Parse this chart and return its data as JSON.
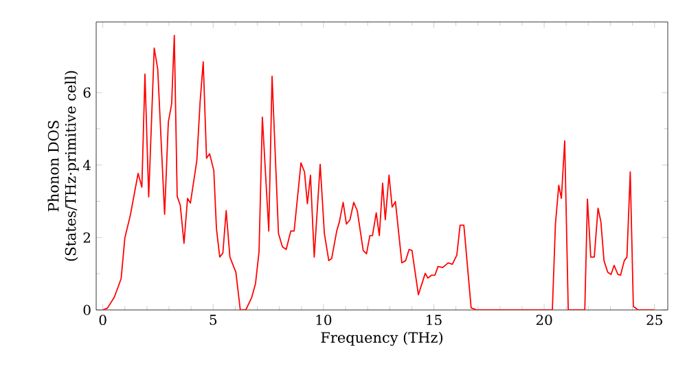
{
  "chart_data": {
    "type": "line",
    "xlabel": "Frequency (THz)",
    "ylabel": "Phonon DOS\n(States/THz·primitive cell)",
    "x": [
      0,
      0.21,
      0.52,
      0.83,
      1.0,
      1.25,
      1.6,
      1.77,
      1.91,
      2.08,
      2.33,
      2.49,
      2.8,
      2.97,
      3.12,
      3.24,
      3.37,
      3.51,
      3.68,
      3.84,
      3.97,
      4.26,
      4.41,
      4.55,
      4.7,
      4.84,
      5.03,
      5.15,
      5.3,
      5.44,
      5.59,
      5.76,
      6.03,
      6.23,
      6.48,
      6.75,
      6.92,
      7.08,
      7.23,
      7.52,
      7.67,
      7.96,
      8.14,
      8.31,
      8.52,
      8.67,
      8.98,
      9.14,
      9.27,
      9.41,
      9.58,
      9.85,
      10.04,
      10.24,
      10.37,
      10.6,
      10.72,
      10.89,
      11.04,
      11.2,
      11.37,
      11.53,
      11.8,
      11.95,
      12.1,
      12.22,
      12.39,
      12.53,
      12.68,
      12.8,
      12.97,
      13.11,
      13.26,
      13.55,
      13.72,
      13.88,
      14.01,
      14.3,
      14.61,
      14.73,
      14.9,
      15.05,
      15.19,
      15.4,
      15.65,
      15.84,
      16.04,
      16.19,
      16.36,
      16.69,
      16.94,
      20.37,
      20.51,
      20.66,
      20.78,
      20.93,
      21.09,
      21.84,
      21.96,
      22.11,
      22.27,
      22.44,
      22.57,
      22.71,
      22.88,
      23.03,
      23.17,
      23.34,
      23.46,
      23.63,
      23.75,
      23.9,
      24.04,
      24.25,
      25
    ],
    "series": [
      {
        "color": "#ff0000",
        "values": [
          0,
          0.05,
          0.35,
          0.86,
          1.99,
          2.62,
          3.77,
          3.39,
          6.51,
          3.12,
          7.23,
          6.64,
          2.64,
          5.19,
          5.69,
          7.58,
          3.14,
          2.89,
          1.84,
          3.08,
          2.95,
          4.12,
          5.75,
          6.85,
          4.19,
          4.31,
          3.85,
          2.24,
          1.46,
          1.57,
          2.74,
          1.46,
          1.04,
          0,
          0,
          0.35,
          0.73,
          1.61,
          5.32,
          2.18,
          6.45,
          2.11,
          1.74,
          1.67,
          2.18,
          2.18,
          4.06,
          3.81,
          2.93,
          3.72,
          1.46,
          4.02,
          2.11,
          1.36,
          1.42,
          2.18,
          2.43,
          2.97,
          2.37,
          2.49,
          2.97,
          2.74,
          1.64,
          1.55,
          2.05,
          2.05,
          2.68,
          2.05,
          3.5,
          2.49,
          3.72,
          2.84,
          2.99,
          1.3,
          1.36,
          1.67,
          1.64,
          0.42,
          1.01,
          0.88,
          0.96,
          0.96,
          1.2,
          1.17,
          1.3,
          1.26,
          1.51,
          2.34,
          2.34,
          0.06,
          0,
          0,
          2.37,
          3.44,
          3.08,
          4.67,
          0,
          0,
          3.06,
          1.46,
          1.46,
          2.81,
          2.43,
          1.36,
          1.04,
          0.98,
          1.23,
          0.98,
          0.96,
          1.36,
          1.46,
          3.81,
          0.1,
          0,
          0
        ]
      }
    ],
    "xlim": [
      -0.3,
      25.6
    ],
    "ylim": [
      0,
      7.95
    ],
    "xticks": [
      0,
      5,
      10,
      15,
      20,
      25
    ],
    "yticks": [
      0,
      2,
      4,
      6
    ],
    "grid": false,
    "marker": "none",
    "line_style": "solid"
  }
}
